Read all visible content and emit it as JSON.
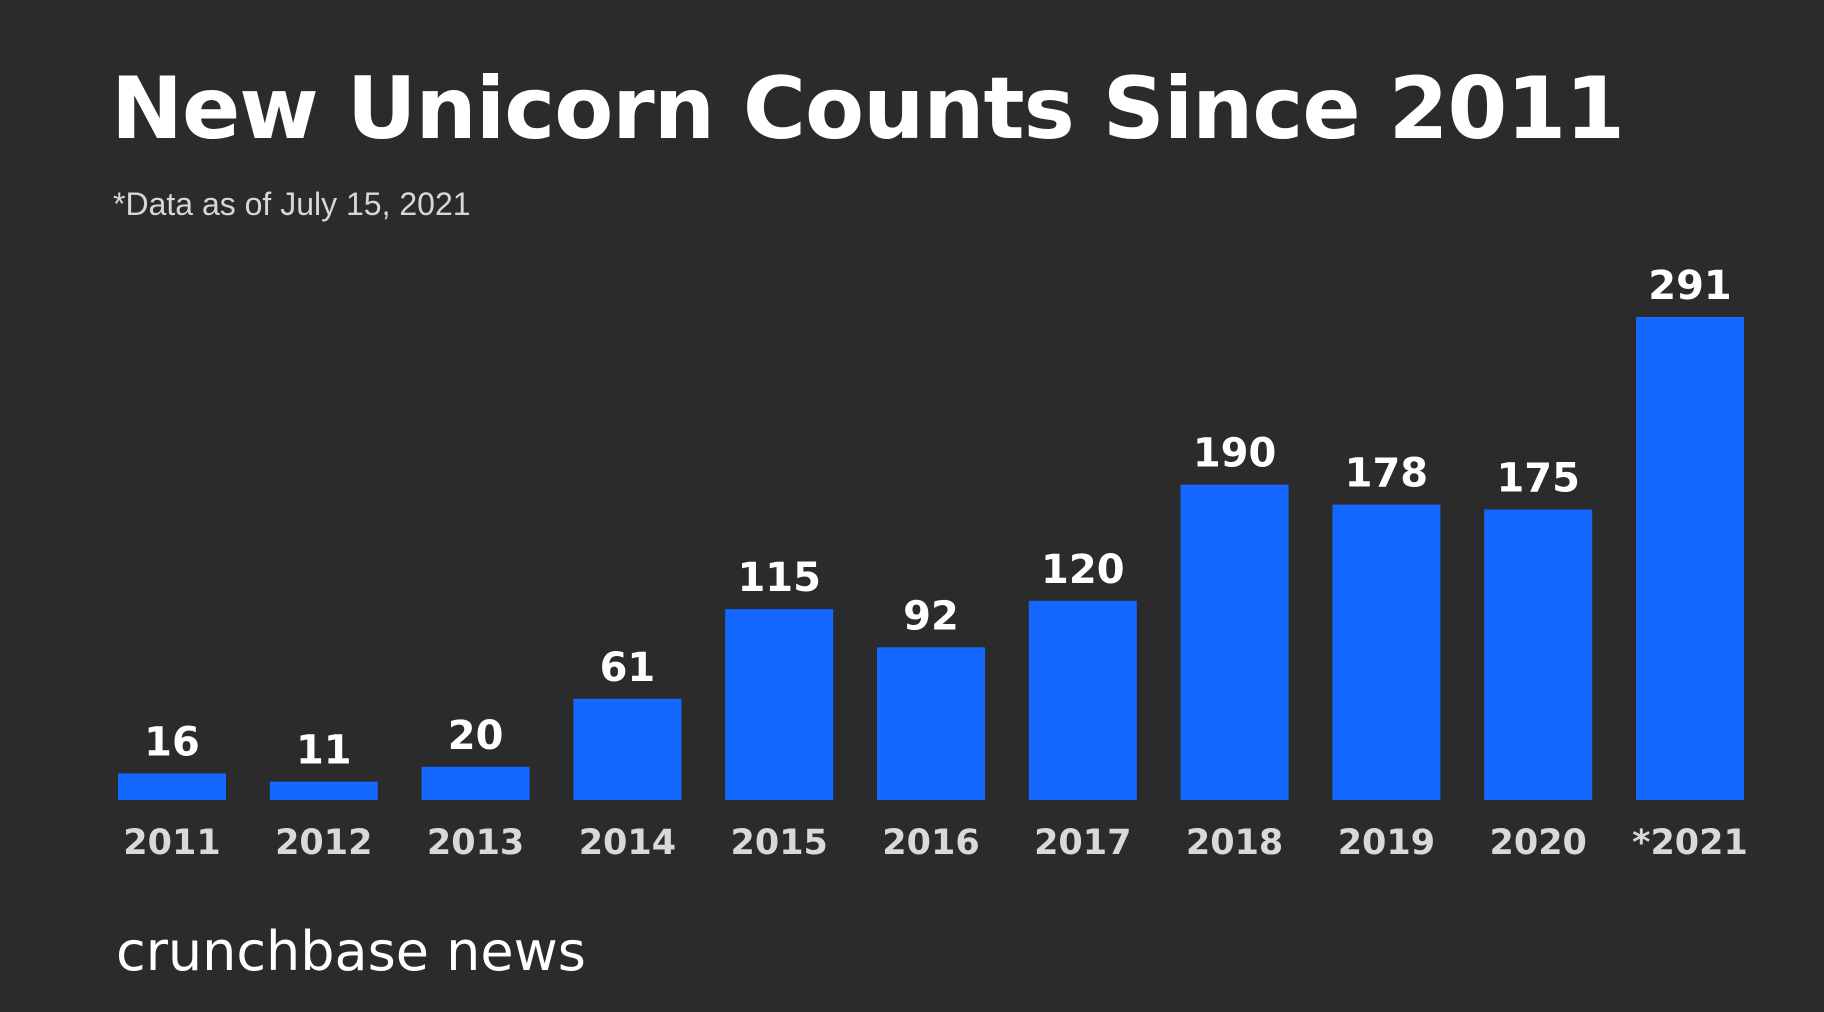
{
  "header": {
    "title": "New Unicorn Counts Since 2011",
    "subtitle": "*Data as of July 15, 2021"
  },
  "footer": {
    "brand": "crunchbase news"
  },
  "colors": {
    "background": "#2b2b2b",
    "bar": "#1467ff",
    "value_label": "#ffffff",
    "category_label": "#d9d9d9"
  },
  "chart_data": {
    "type": "bar",
    "title": "New Unicorn Counts Since 2011",
    "subtitle": "*Data as of July 15, 2021",
    "categories": [
      "2011",
      "2012",
      "2013",
      "2014",
      "2015",
      "2016",
      "2017",
      "2018",
      "2019",
      "2020",
      "*2021"
    ],
    "values": [
      16,
      11,
      20,
      61,
      115,
      92,
      120,
      190,
      178,
      175,
      291
    ],
    "value_labels": [
      "16",
      "11",
      "20",
      "61",
      "115",
      "92",
      "120",
      "190",
      "178",
      "175",
      "291"
    ],
    "xlabel": "",
    "ylabel": "",
    "ylim": [
      0,
      291
    ],
    "grid": false,
    "legend": false,
    "data_labels": true
  }
}
